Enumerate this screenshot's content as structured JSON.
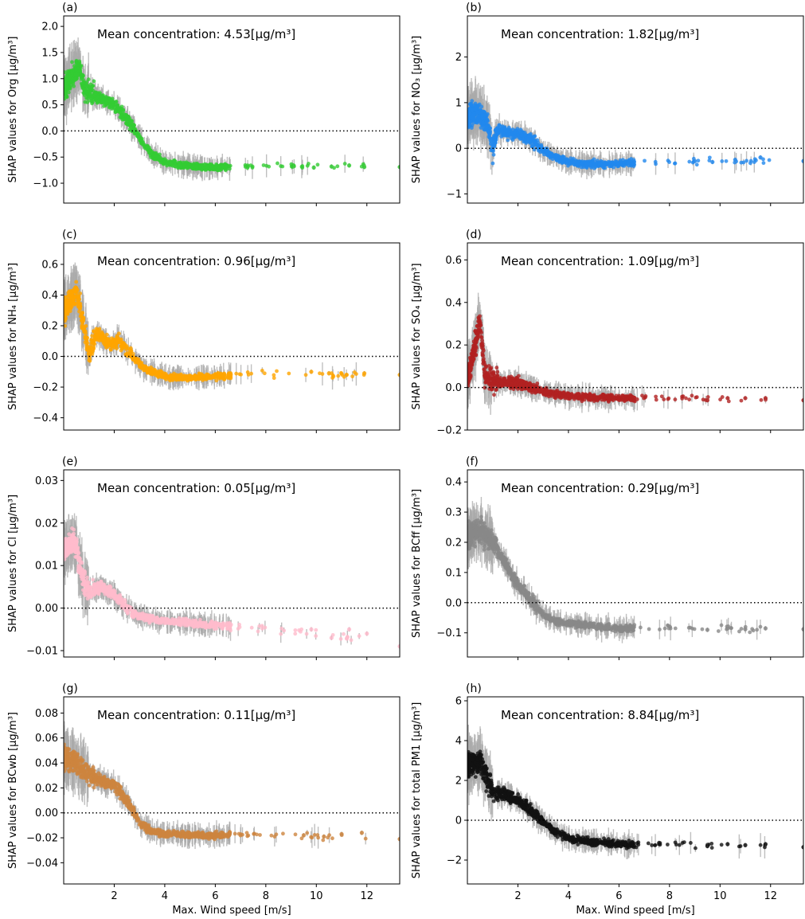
{
  "figure": {
    "xlabel": "Max. Wind speed [m/s]",
    "xticks": [
      2,
      4,
      6,
      8,
      10,
      12
    ],
    "xlim": [
      0,
      13.3
    ],
    "mean_prefix": "Mean concentration: ",
    "unit_text": "[μg/m³]",
    "zero_line": "dotted"
  },
  "chart_data": [
    {
      "type": "scatter",
      "panel": "(a)",
      "ylabel": "SHAP values for Org [μg/m³]",
      "mean_value": "4.53",
      "color": "#33cc33",
      "ylim": [
        -1.38,
        2.2
      ],
      "yticks": [
        -1.0,
        -0.5,
        0.0,
        0.5,
        1.0,
        1.5,
        2.0
      ],
      "ytick_labels": [
        "−1.0",
        "−0.5",
        "0.0",
        "0.5",
        "1.0",
        "1.5",
        "2.0"
      ],
      "profile": [
        [
          0.05,
          0.85
        ],
        [
          0.3,
          1.0
        ],
        [
          0.6,
          1.2
        ],
        [
          0.8,
          0.85
        ],
        [
          1.0,
          0.75
        ],
        [
          1.5,
          0.6
        ],
        [
          2.0,
          0.5
        ],
        [
          2.5,
          0.25
        ],
        [
          3.0,
          -0.15
        ],
        [
          3.5,
          -0.45
        ],
        [
          4.0,
          -0.6
        ],
        [
          5.0,
          -0.68
        ],
        [
          6.0,
          -0.7
        ],
        [
          7.0,
          -0.66
        ],
        [
          9.0,
          -0.67
        ],
        [
          13.3,
          -0.69
        ]
      ],
      "sample_points": [
        [
          11.9,
          -0.69
        ],
        [
          11.3,
          -0.66
        ],
        [
          10.6,
          -0.68
        ],
        [
          9.9,
          -0.7
        ],
        [
          9.1,
          -0.66
        ],
        [
          13.3,
          -0.69
        ]
      ]
    },
    {
      "type": "scatter",
      "panel": "(b)",
      "ylabel": "SHAP values for NO₃ [μg/m³]",
      "mean_value": "1.82",
      "color": "#2288ee",
      "ylim": [
        -1.2,
        2.9
      ],
      "yticks": [
        -1,
        0,
        1,
        2
      ],
      "ytick_labels": [
        "−1",
        "0",
        "1",
        "2"
      ],
      "profile": [
        [
          0.05,
          0.7
        ],
        [
          0.4,
          0.8
        ],
        [
          0.8,
          0.5
        ],
        [
          1.0,
          0.0
        ],
        [
          1.2,
          0.45
        ],
        [
          1.5,
          0.35
        ],
        [
          2.0,
          0.3
        ],
        [
          2.5,
          0.2
        ],
        [
          3.0,
          -0.05
        ],
        [
          3.5,
          -0.2
        ],
        [
          4.0,
          -0.3
        ],
        [
          5.0,
          -0.35
        ],
        [
          6.0,
          -0.33
        ],
        [
          8.0,
          -0.3
        ],
        [
          10.0,
          -0.28
        ],
        [
          13.3,
          -0.28
        ]
      ],
      "sample_points": [
        [
          11.6,
          -0.2
        ],
        [
          10.6,
          -0.25
        ],
        [
          9.7,
          -0.3
        ],
        [
          9.0,
          -0.28
        ],
        [
          13.3,
          -0.28
        ]
      ]
    },
    {
      "type": "scatter",
      "panel": "(c)",
      "ylabel": "SHAP values for NH₄ [μg/m³]",
      "mean_value": "0.96",
      "color": "#ffa500",
      "ylim": [
        -0.48,
        0.74
      ],
      "yticks": [
        -0.4,
        -0.2,
        0.0,
        0.2,
        0.4,
        0.6
      ],
      "ytick_labels": [
        "−0.4",
        "−0.2",
        "0.0",
        "0.2",
        "0.4",
        "0.6"
      ],
      "profile": [
        [
          0.05,
          0.3
        ],
        [
          0.5,
          0.42
        ],
        [
          0.8,
          0.2
        ],
        [
          1.0,
          0.0
        ],
        [
          1.3,
          0.15
        ],
        [
          1.8,
          0.08
        ],
        [
          2.2,
          0.1
        ],
        [
          2.7,
          0.0
        ],
        [
          3.2,
          -0.08
        ],
        [
          4.0,
          -0.13
        ],
        [
          5.0,
          -0.14
        ],
        [
          6.0,
          -0.13
        ],
        [
          8.0,
          -0.11
        ],
        [
          10.0,
          -0.12
        ],
        [
          13.3,
          -0.12
        ]
      ],
      "sample_points": [
        [
          11.9,
          -0.11
        ],
        [
          11.2,
          -0.12
        ],
        [
          10.5,
          -0.11
        ],
        [
          9.8,
          -0.1
        ],
        [
          13.3,
          -0.12
        ]
      ]
    },
    {
      "type": "scatter",
      "panel": "(d)",
      "ylabel": "SHAP values for SO₄ [μg/m³]",
      "mean_value": "1.09",
      "color": "#b22222",
      "ylim": [
        -0.2,
        0.68
      ],
      "yticks": [
        -0.2,
        0.0,
        0.2,
        0.4,
        0.6
      ],
      "ytick_labels": [
        "−0.2",
        "0.0",
        "0.2",
        "0.4",
        "0.6"
      ],
      "profile": [
        [
          0.05,
          0.05
        ],
        [
          0.3,
          0.2
        ],
        [
          0.5,
          0.3
        ],
        [
          0.7,
          0.05
        ],
        [
          1.0,
          0.03
        ],
        [
          2.0,
          0.02
        ],
        [
          3.0,
          -0.02
        ],
        [
          4.0,
          -0.04
        ],
        [
          6.0,
          -0.05
        ],
        [
          8.0,
          -0.05
        ],
        [
          13.3,
          -0.06
        ]
      ],
      "sample_points": [
        [
          11.8,
          -0.05
        ],
        [
          11.0,
          -0.05
        ],
        [
          10.3,
          -0.05
        ],
        [
          9.5,
          -0.06
        ],
        [
          13.3,
          -0.06
        ]
      ]
    },
    {
      "type": "scatter",
      "panel": "(e)",
      "ylabel": "SHAP values for Cl [μg/m³]",
      "mean_value": "0.05",
      "color": "#ffbbcc",
      "ylim": [
        -0.0115,
        0.0325
      ],
      "yticks": [
        -0.01,
        0.0,
        0.01,
        0.02,
        0.03
      ],
      "ytick_labels": [
        "−0.01",
        "0.00",
        "0.01",
        "0.02",
        "0.03"
      ],
      "profile": [
        [
          0.05,
          0.014
        ],
        [
          0.4,
          0.016
        ],
        [
          0.8,
          0.006
        ],
        [
          1.0,
          0.004
        ],
        [
          1.5,
          0.005
        ],
        [
          2.0,
          0.003
        ],
        [
          2.5,
          0.0
        ],
        [
          3.0,
          -0.002
        ],
        [
          4.0,
          -0.003
        ],
        [
          6.0,
          -0.004
        ],
        [
          8.0,
          -0.005
        ],
        [
          10.0,
          -0.006
        ],
        [
          13.3,
          -0.009
        ]
      ],
      "sample_points": [
        [
          12.0,
          -0.006
        ],
        [
          11.3,
          -0.005
        ],
        [
          10.6,
          -0.007
        ],
        [
          9.8,
          -0.005
        ],
        [
          13.3,
          -0.009
        ]
      ]
    },
    {
      "type": "scatter",
      "panel": "(f)",
      "ylabel": "SHAP values for BCff [μg/m³]",
      "mean_value": "0.29",
      "color": "#888888",
      "ylim": [
        -0.18,
        0.44
      ],
      "yticks": [
        -0.1,
        0.0,
        0.1,
        0.2,
        0.3,
        0.4
      ],
      "ytick_labels": [
        "−0.1",
        "0.0",
        "0.1",
        "0.2",
        "0.3",
        "0.4"
      ],
      "profile": [
        [
          0.05,
          0.22
        ],
        [
          0.5,
          0.24
        ],
        [
          1.0,
          0.2
        ],
        [
          1.5,
          0.13
        ],
        [
          2.0,
          0.06
        ],
        [
          2.5,
          0.01
        ],
        [
          3.0,
          -0.04
        ],
        [
          3.5,
          -0.06
        ],
        [
          4.0,
          -0.07
        ],
        [
          6.0,
          -0.085
        ],
        [
          8.0,
          -0.085
        ],
        [
          13.3,
          -0.088
        ]
      ],
      "sample_points": [
        [
          11.8,
          -0.085
        ],
        [
          11.0,
          -0.088
        ],
        [
          10.3,
          -0.085
        ],
        [
          9.5,
          -0.09
        ],
        [
          13.3,
          -0.088
        ]
      ]
    },
    {
      "type": "scatter",
      "panel": "(g)",
      "ylabel": "SHAP values for BCwb [μg/m³]",
      "mean_value": "0.11",
      "color": "#cd853f",
      "ylim": [
        -0.057,
        0.093
      ],
      "yticks": [
        -0.04,
        -0.02,
        0.0,
        0.02,
        0.04,
        0.06,
        0.08
      ],
      "ytick_labels": [
        "−0.04",
        "−0.02",
        "0.00",
        "0.02",
        "0.04",
        "0.06",
        "0.08"
      ],
      "profile": [
        [
          0.05,
          0.045
        ],
        [
          0.5,
          0.04
        ],
        [
          1.0,
          0.03
        ],
        [
          1.5,
          0.025
        ],
        [
          2.0,
          0.022
        ],
        [
          2.5,
          0.01
        ],
        [
          3.0,
          -0.008
        ],
        [
          3.5,
          -0.015
        ],
        [
          4.0,
          -0.017
        ],
        [
          6.0,
          -0.018
        ],
        [
          8.0,
          -0.017
        ],
        [
          13.3,
          -0.021
        ]
      ],
      "sample_points": [
        [
          11.8,
          -0.016
        ],
        [
          11.0,
          -0.017
        ],
        [
          10.3,
          -0.019
        ],
        [
          9.5,
          -0.018
        ],
        [
          13.3,
          -0.021
        ]
      ]
    },
    {
      "type": "scatter",
      "panel": "(h)",
      "ylabel": "SHAP values for total PM1 [μg/m³]",
      "mean_value": "8.84",
      "color": "#111111",
      "ylim": [
        -3.2,
        6.2
      ],
      "yticks": [
        -2,
        0,
        2,
        4,
        6
      ],
      "ytick_labels": [
        "−2",
        "0",
        "2",
        "4",
        "6"
      ],
      "profile": [
        [
          0.05,
          2.8
        ],
        [
          0.5,
          3.0
        ],
        [
          0.8,
          2.0
        ],
        [
          1.0,
          1.5
        ],
        [
          1.5,
          1.3
        ],
        [
          2.0,
          1.0
        ],
        [
          2.5,
          0.5
        ],
        [
          3.0,
          -0.1
        ],
        [
          3.5,
          -0.6
        ],
        [
          4.0,
          -0.9
        ],
        [
          5.0,
          -1.1
        ],
        [
          6.0,
          -1.2
        ],
        [
          8.0,
          -1.2
        ],
        [
          13.3,
          -1.35
        ]
      ],
      "sample_points": [
        [
          11.8,
          -1.2
        ],
        [
          11.0,
          -1.25
        ],
        [
          10.3,
          -1.2
        ],
        [
          9.5,
          -1.3
        ],
        [
          13.3,
          -1.35
        ]
      ]
    }
  ]
}
